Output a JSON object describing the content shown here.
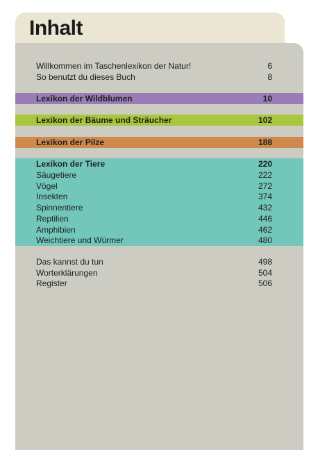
{
  "header": {
    "title": "Inhalt"
  },
  "intro": [
    {
      "title": "Willkommen im Taschenlexikon der Natur!",
      "page": 6
    },
    {
      "title": "So benutzt du dieses Buch",
      "page": 8
    }
  ],
  "sections": [
    {
      "title": "Lexikon der Wildblumen",
      "page": 10
    },
    {
      "title": "Lexikon der Bäume und Sträucher",
      "page": 102
    },
    {
      "title": "Lexikon der Pilze",
      "page": 188
    }
  ],
  "animals": {
    "title": "Lexikon der Tiere",
    "page": 220,
    "entries": [
      {
        "title": "Säugetiere",
        "page": 222
      },
      {
        "title": "Vögel",
        "page": 272
      },
      {
        "title": "Insekten",
        "page": 374
      },
      {
        "title": "Spinnentiere",
        "page": 432
      },
      {
        "title": "Reptilien",
        "page": 446
      },
      {
        "title": "Amphibien",
        "page": 462
      },
      {
        "title": "Weichtiere und Würmer",
        "page": 480
      }
    ]
  },
  "appendix": [
    {
      "title": "Das kannst du tun",
      "page": 498
    },
    {
      "title": "Worterklärungen",
      "page": 504
    },
    {
      "title": "Register",
      "page": 506
    }
  ]
}
